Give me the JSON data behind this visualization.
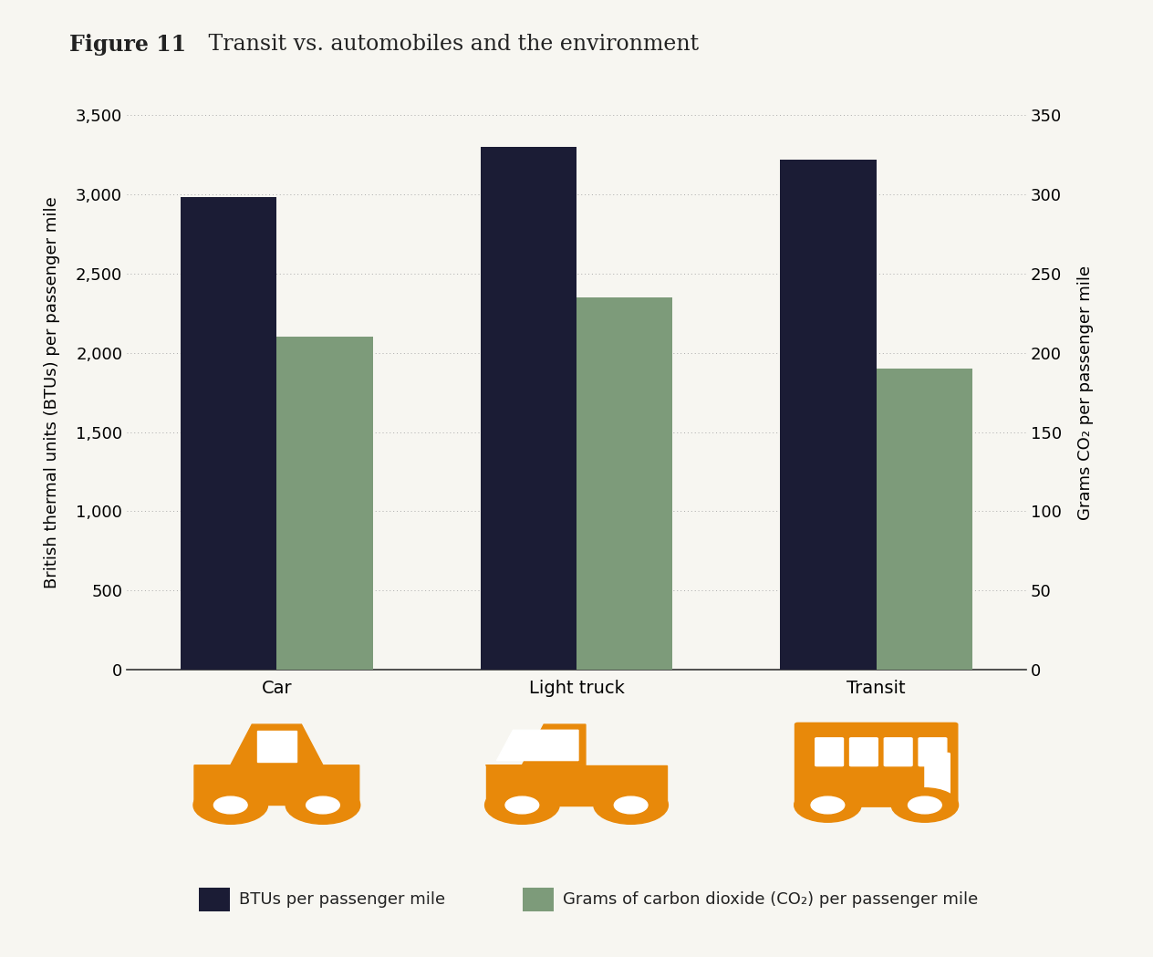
{
  "title_bold": "Figure 11",
  "title_regular": " Transit vs. automobiles and the environment",
  "categories": [
    "Car",
    "Light truck",
    "Transit"
  ],
  "btu_values": [
    2980,
    3300,
    3220
  ],
  "co2_values": [
    210,
    235,
    190
  ],
  "btu_color": "#1b1c35",
  "co2_color": "#7d9b7a",
  "bar_width": 0.32,
  "ylim_left": [
    0,
    3500
  ],
  "ylim_right": [
    0,
    350
  ],
  "yticks_left": [
    0,
    500,
    1000,
    1500,
    2000,
    2500,
    3000,
    3500
  ],
  "yticks_right": [
    0,
    50,
    100,
    150,
    200,
    250,
    300,
    350
  ],
  "ylabel_left": "British thermal units (BTUs) per passenger mile",
  "ylabel_right": "Grams CO₂ per passenger mile",
  "legend_btu": "BTUs per passenger mile",
  "legend_co2": "Grams of carbon dioxide (CO₂) per passenger mile",
  "background_color": "#f7f6f1",
  "gridline_color": "#aaaaaa",
  "title_fontsize": 17,
  "axis_fontsize": 13,
  "tick_fontsize": 13,
  "legend_fontsize": 13,
  "vehicle_icon_color": "#e8890a"
}
